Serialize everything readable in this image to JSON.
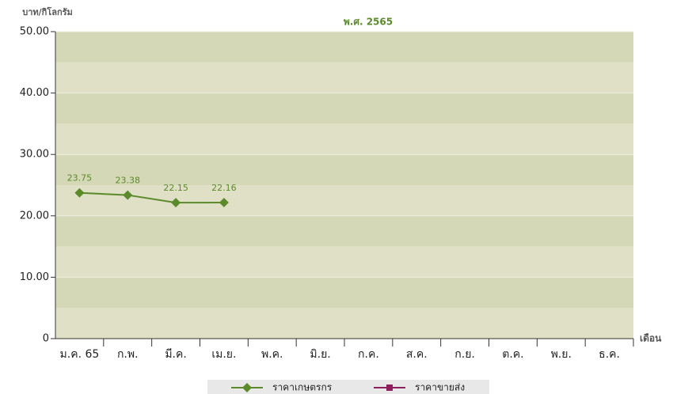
{
  "chart_data": {
    "type": "line",
    "title": "พ.ศ. 2565",
    "y_label": "บาท/กิโลกรัม",
    "x_label": "เดือน",
    "categories": [
      "ม.ค. 65",
      "ก.พ.",
      "มี.ค.",
      "เม.ย.",
      "พ.ค.",
      "มิ.ย.",
      "ก.ค.",
      "ส.ค.",
      "ก.ย.",
      "ต.ค.",
      "พ.ย.",
      "ธ.ค."
    ],
    "series": [
      {
        "name": "ราคาเกษตรกร",
        "color": "#5b8a2b",
        "marker": "diamond",
        "values": [
          23.75,
          23.38,
          22.15,
          22.16,
          null,
          null,
          null,
          null,
          null,
          null,
          null,
          null
        ]
      },
      {
        "name": "ราคาขายส่ง",
        "color": "#8e1f5e",
        "marker": "square",
        "values": [
          null,
          null,
          null,
          null,
          null,
          null,
          null,
          null,
          null,
          null,
          null,
          null
        ]
      }
    ],
    "ylim": [
      0,
      50
    ],
    "yticks": [
      0,
      {
        "value": 10,
        "label": "10.00"
      },
      {
        "value": 20,
        "label": "20.00"
      },
      {
        "value": 30,
        "label": "30.00"
      },
      {
        "value": 40,
        "label": "40.00"
      },
      {
        "value": 50,
        "label": "50.00"
      }
    ],
    "legend": "bottom"
  }
}
